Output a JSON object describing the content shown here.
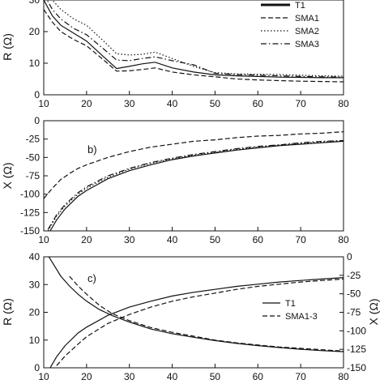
{
  "chart_data": [
    {
      "panel": "a",
      "type": "line",
      "ylabel": "R (Ω)",
      "xlim": [
        10,
        80
      ],
      "ylim": [
        0,
        30
      ],
      "xticks": [
        10,
        20,
        30,
        40,
        50,
        60,
        70,
        80
      ],
      "yticks": [
        0,
        10,
        20,
        30
      ],
      "grid": false,
      "legend_position": "top-right",
      "series": [
        {
          "name": "T1",
          "style": "solid",
          "x": [
            10,
            12,
            14,
            17,
            20,
            24,
            27,
            30,
            33,
            36,
            40,
            45,
            50,
            55,
            60,
            65,
            70,
            75,
            80
          ],
          "y": [
            30,
            25,
            22,
            19.5,
            17,
            12,
            8.3,
            9,
            9.8,
            10.3,
            8.5,
            7.2,
            6.3,
            6,
            5.8,
            5.6,
            5.5,
            5.4,
            5.4
          ]
        },
        {
          "name": "SMA1",
          "style": "dashed",
          "x": [
            10,
            12,
            14,
            17,
            20,
            24,
            27,
            30,
            33,
            36,
            40,
            45,
            50,
            55,
            60,
            65,
            70,
            75,
            80
          ],
          "y": [
            27,
            23,
            20,
            17.5,
            15.5,
            11,
            7.5,
            7.6,
            8,
            8.5,
            7.2,
            6.3,
            5.7,
            5,
            4.7,
            4.5,
            4.3,
            4.2,
            4.1
          ]
        },
        {
          "name": "SMA2",
          "style": "dotted",
          "x": [
            10,
            12,
            14,
            17,
            20,
            24,
            27,
            30,
            33,
            36,
            40,
            45,
            50,
            55,
            60,
            65,
            70,
            75,
            80
          ],
          "y": [
            35,
            30,
            27,
            24,
            22,
            17,
            13,
            12.6,
            12.8,
            13.5,
            11.5,
            9,
            7,
            6.6,
            6.5,
            6.4,
            6.2,
            6,
            5.9
          ]
        },
        {
          "name": "SMA3",
          "style": "dashdot",
          "x": [
            10,
            12,
            14,
            17,
            20,
            24,
            27,
            30,
            33,
            36,
            40,
            45,
            50,
            55,
            60,
            65,
            70,
            75,
            80
          ],
          "y": [
            32,
            27,
            24,
            21,
            19,
            14.5,
            11,
            10.8,
            11.5,
            12,
            10.8,
            9.5,
            6.8,
            6.4,
            6.2,
            6,
            5.8,
            5.7,
            5.6
          ]
        }
      ]
    },
    {
      "panel": "b",
      "type": "line",
      "label": "b)",
      "ylabel": "X (Ω)",
      "xlim": [
        10,
        80
      ],
      "ylim": [
        -150,
        0
      ],
      "xticks": [
        10,
        20,
        30,
        40,
        50,
        60,
        70,
        80
      ],
      "yticks": [
        0,
        -25,
        -50,
        -75,
        -100,
        -125,
        -150
      ],
      "grid": false,
      "series": [
        {
          "name": "T1",
          "style": "solid",
          "x": [
            11,
            12,
            13,
            15,
            18,
            20,
            25,
            30,
            35,
            40,
            45,
            50,
            55,
            60,
            65,
            70,
            75,
            80
          ],
          "y": [
            -155,
            -145,
            -135,
            -120,
            -103,
            -95,
            -79,
            -68,
            -60,
            -53,
            -48,
            -44,
            -40,
            -37,
            -34,
            -32,
            -30,
            -28
          ]
        },
        {
          "name": "SMA1",
          "style": "dashed",
          "x": [
            10,
            12,
            14,
            16,
            18,
            20,
            25,
            30,
            35,
            40,
            45,
            50,
            55,
            60,
            65,
            70,
            75,
            80
          ],
          "y": [
            -106,
            -92,
            -80,
            -72,
            -65,
            -60,
            -50,
            -42,
            -36,
            -32,
            -28,
            -26,
            -23,
            -21,
            -20,
            -18,
            -17,
            -15
          ]
        },
        {
          "name": "SMA2",
          "style": "dotted",
          "x": [
            11,
            12,
            13,
            15,
            18,
            20,
            25,
            30,
            35,
            40,
            45,
            50,
            55,
            60,
            65,
            70,
            75,
            80
          ],
          "y": [
            -150,
            -140,
            -130,
            -116,
            -100,
            -92,
            -77,
            -66,
            -58,
            -52,
            -47,
            -43,
            -39,
            -36,
            -33,
            -31,
            -29,
            -27
          ]
        },
        {
          "name": "SMA3",
          "style": "dashdot",
          "x": [
            11,
            12,
            13,
            15,
            18,
            20,
            25,
            30,
            35,
            40,
            45,
            50,
            55,
            60,
            65,
            70,
            75,
            80
          ],
          "y": [
            -148,
            -138,
            -128,
            -114,
            -98,
            -90,
            -75,
            -65,
            -57,
            -51,
            -46,
            -42,
            -38,
            -35,
            -33,
            -30,
            -28,
            -27
          ]
        }
      ]
    },
    {
      "panel": "c",
      "type": "line",
      "label": "c)",
      "ylabel": "R (Ω)",
      "y2label": "X (Ω)",
      "xlim": [
        10,
        80
      ],
      "ylim": [
        0,
        40
      ],
      "y2lim": [
        -150,
        0
      ],
      "xticks": [
        10,
        20,
        30,
        40,
        50,
        60,
        70,
        80
      ],
      "yticks": [
        0,
        10,
        20,
        30,
        40
      ],
      "y2ticks": [
        0,
        -25,
        -50,
        -75,
        -100,
        -125,
        -150
      ],
      "grid": false,
      "legend_position": "center-right",
      "series": [
        {
          "name": "T1",
          "style": "solid",
          "axis": "left",
          "x": [
            10,
            12,
            14,
            16,
            18,
            20,
            23,
            26,
            30,
            35,
            40,
            45,
            50,
            55,
            60,
            65,
            70,
            75,
            80
          ],
          "y": [
            43,
            38,
            33,
            29.5,
            26.5,
            24,
            21,
            18.8,
            16.5,
            14,
            12.3,
            11,
            9.8,
            8.8,
            8,
            7.3,
            6.7,
            6.2,
            5.8
          ]
        },
        {
          "name": "T1",
          "style": "solid",
          "axis": "right",
          "x": [
            11,
            12,
            13,
            15,
            18,
            20,
            25,
            30,
            35,
            40,
            45,
            50,
            55,
            60,
            65,
            70,
            75,
            80
          ],
          "y": [
            -155,
            -145,
            -135,
            -120,
            -103,
            -95,
            -79,
            -68,
            -60,
            -53,
            -48,
            -44,
            -40,
            -37,
            -34,
            -32,
            -30,
            -28
          ]
        },
        {
          "name": "SMA1-3",
          "style": "dashed",
          "axis": "left",
          "x": [
            16,
            18,
            20,
            23,
            26,
            30,
            35,
            40,
            45,
            50,
            55,
            60,
            65,
            70,
            75,
            80
          ],
          "y": [
            33,
            29.5,
            26.5,
            22.5,
            19.5,
            17,
            14.5,
            12.8,
            11.4,
            10,
            9,
            8.2,
            7.5,
            7,
            6.5,
            6
          ]
        },
        {
          "name": "SMA1-3",
          "style": "dashed",
          "axis": "right",
          "x": [
            12,
            13,
            15,
            18,
            20,
            25,
            30,
            35,
            40,
            45,
            50,
            55,
            60,
            65,
            70,
            75,
            80
          ],
          "y": [
            -155,
            -147,
            -134,
            -118,
            -108,
            -90,
            -78,
            -68,
            -60,
            -54,
            -49,
            -44,
            -40,
            -37,
            -34,
            -32,
            -30
          ]
        }
      ],
      "legend_entries": [
        {
          "name": "T1",
          "style": "solid"
        },
        {
          "name": "SMA1-3",
          "style": "dashed"
        }
      ]
    }
  ],
  "legend_a": [
    {
      "name": "T1",
      "style": "thick"
    },
    {
      "name": "SMA1",
      "style": "dashed"
    },
    {
      "name": "SMA2",
      "style": "dotted"
    },
    {
      "name": "SMA3",
      "style": "dashdot"
    }
  ]
}
